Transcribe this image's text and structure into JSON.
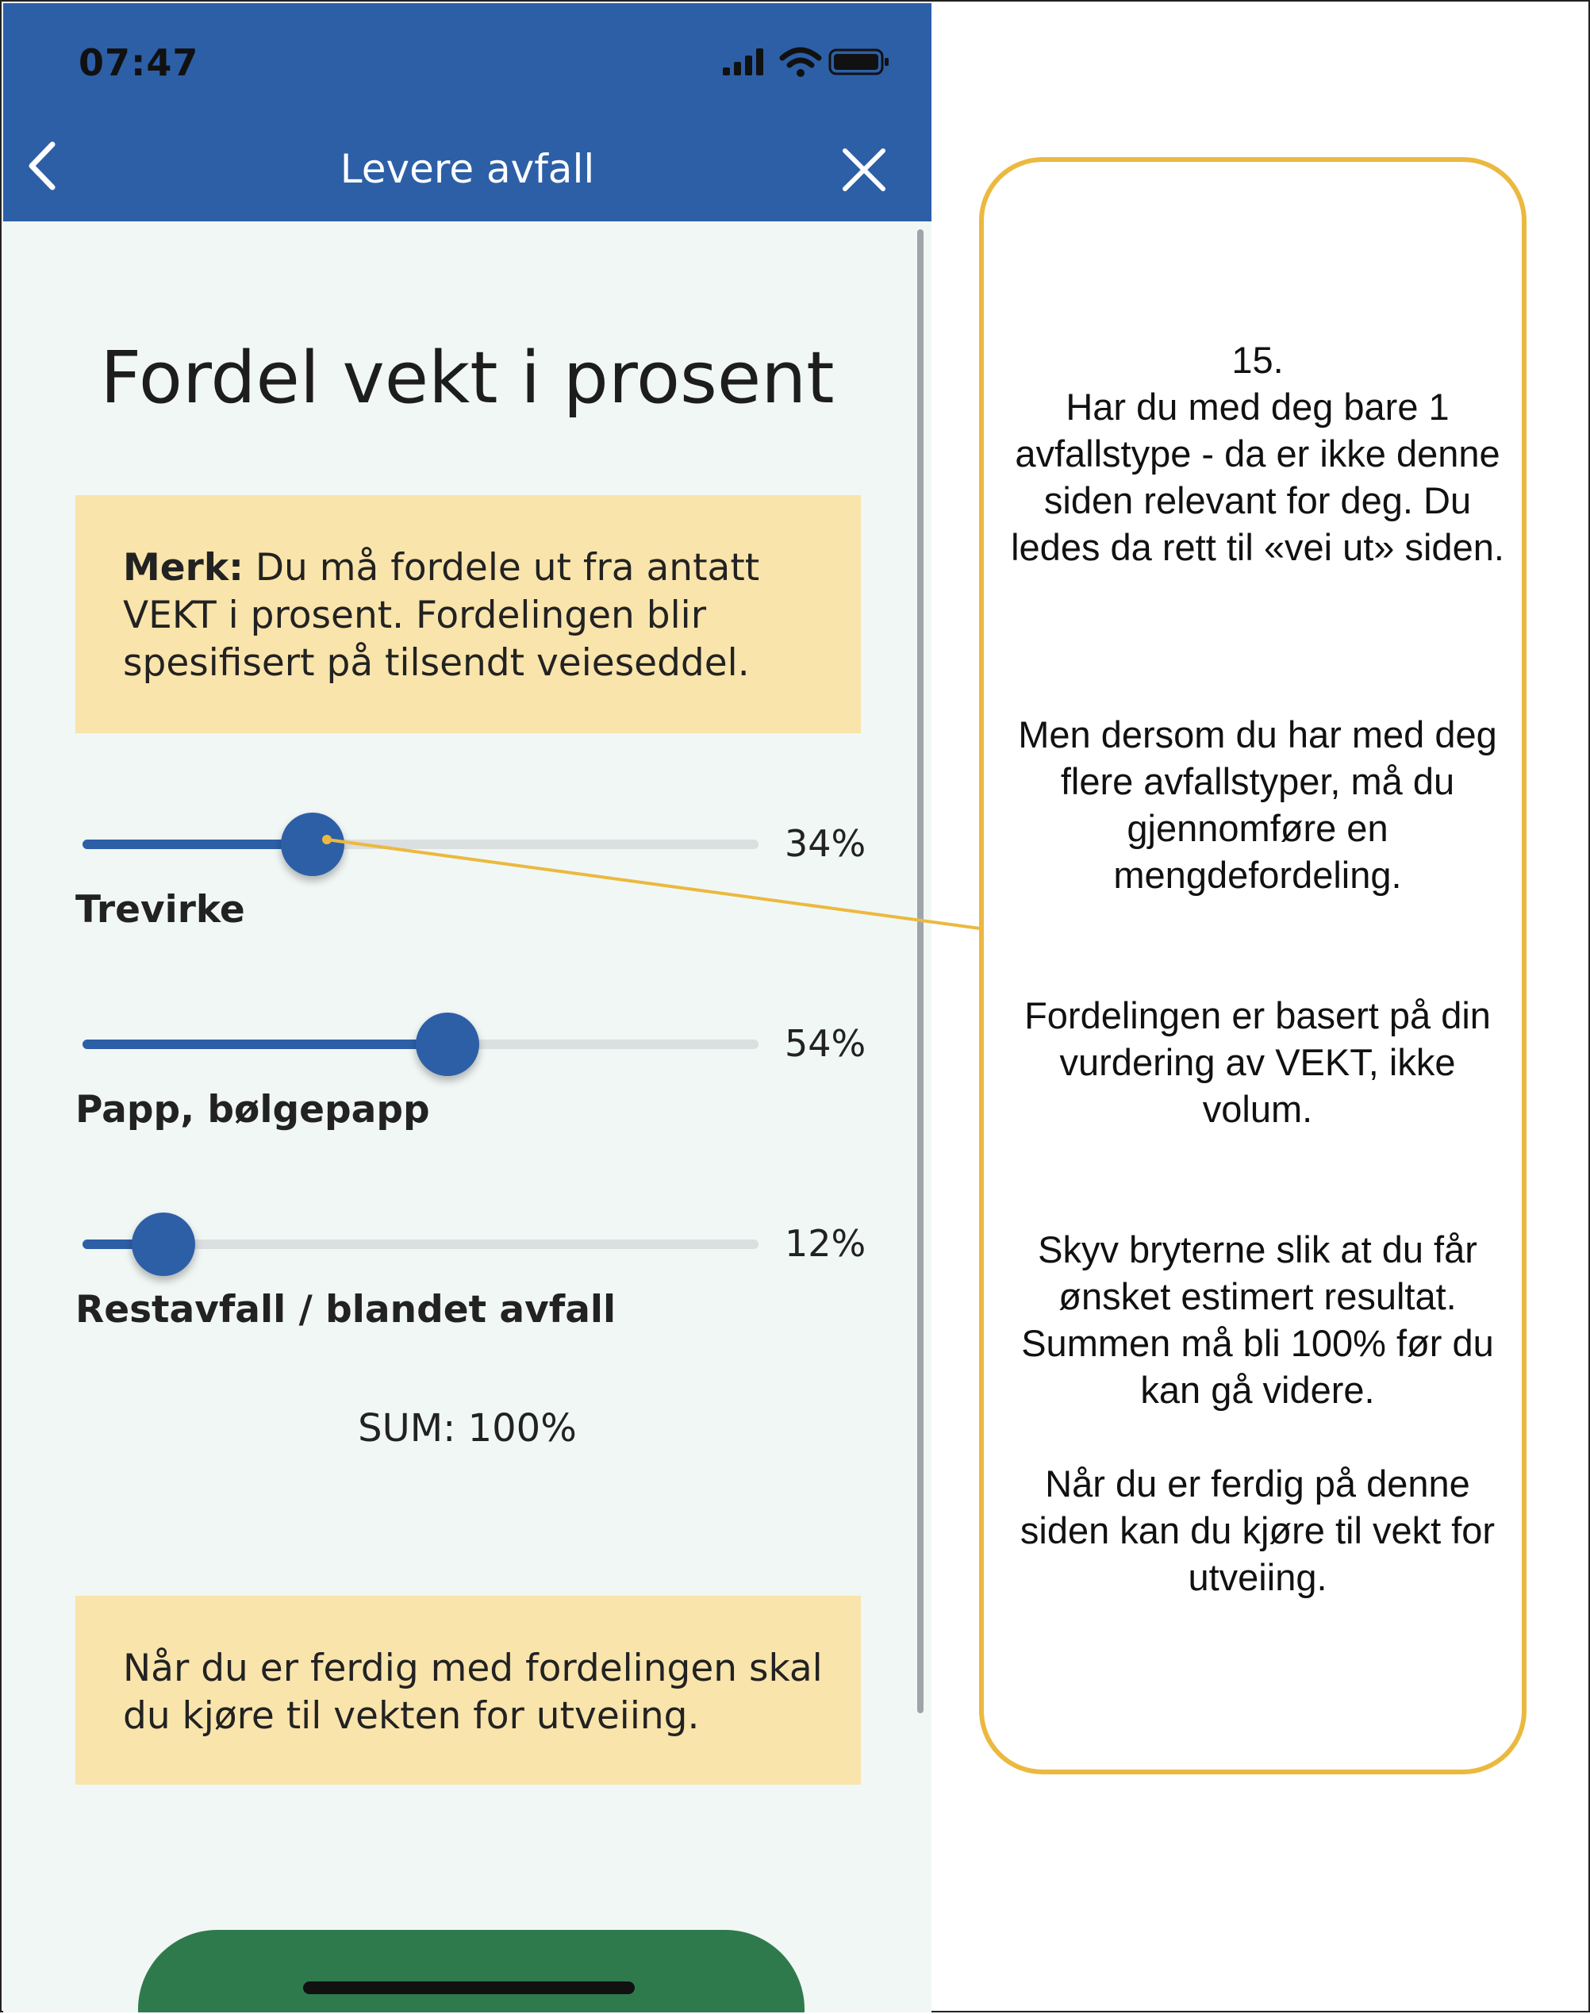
{
  "status_bar": {
    "time": "07:47"
  },
  "nav": {
    "title": "Levere avfall"
  },
  "page_title": "Fordel vekt i prosent",
  "merk_note": {
    "bold": "Merk:",
    "text": " Du må fordele ut fra antatt VEKT i prosent. Fordelingen blir spesifisert på tilsendt veieseddel."
  },
  "sliders": [
    {
      "label": "Trevirke",
      "value_text": "34%",
      "value": 34
    },
    {
      "label": "Papp, bølgepapp",
      "value_text": "54%",
      "value": 54
    },
    {
      "label": "Restavfall / blandet avfall",
      "value_text": "12%",
      "value": 12
    }
  ],
  "sum_text": "SUM: 100%",
  "done_note": "Når du er ferdig med fordelingen skal du kjøre til vekten for utveiing.",
  "callout": {
    "number": "15.",
    "paragraphs": [
      "Har du med deg bare 1 avfallstype - da er ikke denne siden relevant for deg. Du ledes da rett til «vei ut» siden.",
      "Men dersom du har med deg flere avfallstyper, må du gjennomføre en mengdefordeling.",
      "Fordelingen er basert på din vurdering av VEKT, ikke volum.",
      "Skyv bryterne slik at du får ønsket estimert resultat. Summen må bli 100% før du kan gå videre.",
      "Når du er ferdig på denne siden kan du kjøre til vekt for utveiing."
    ]
  },
  "icons": {
    "status": [
      "signal-icon",
      "wifi-icon",
      "battery-icon"
    ],
    "nav": [
      "back-chevron-icon",
      "close-icon"
    ]
  },
  "colors": {
    "brand_blue": "#2d5fa7",
    "note_yellow": "#f9e4ab",
    "callout_border": "#ebb93f",
    "page_bg": "#f1f7f5",
    "next_button_green": "#2f7a4c"
  }
}
